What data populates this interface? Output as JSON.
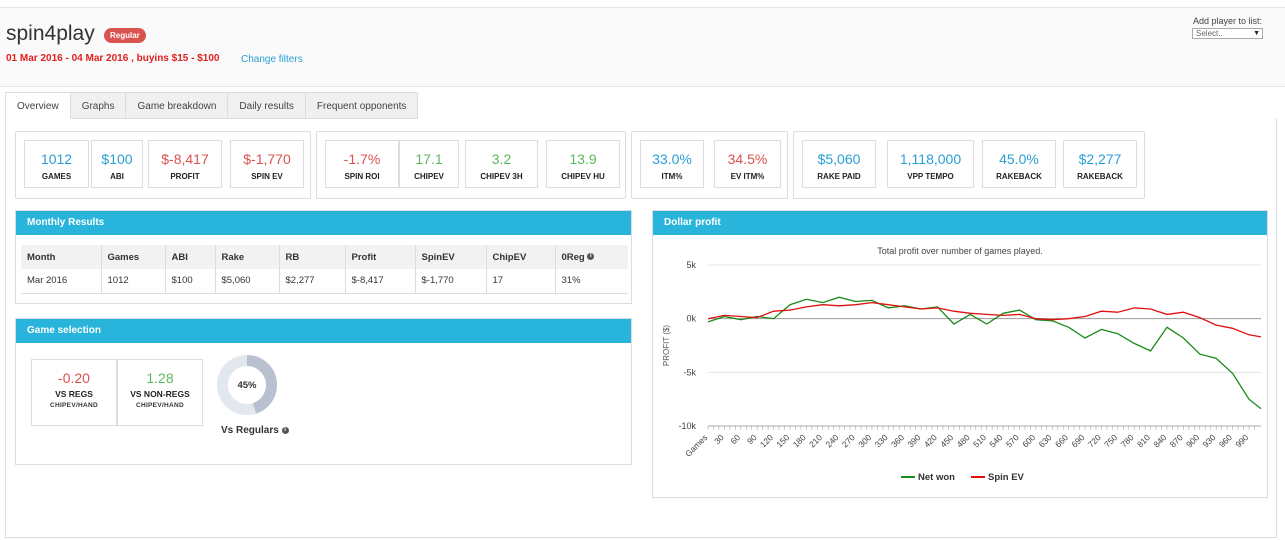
{
  "header": {
    "player_name": "spin4play",
    "badge": "Regular",
    "filter_text": "01 Mar 2016 - 04 Mar 2016 , buyins $15 - $100",
    "change_filters": "Change filters",
    "add_player_label": "Add player to list:",
    "add_player_placeholder": "Select.."
  },
  "tabs": [
    {
      "label": "Overview",
      "active": true
    },
    {
      "label": "Graphs"
    },
    {
      "label": "Game breakdown"
    },
    {
      "label": "Daily results"
    },
    {
      "label": "Frequent opponents"
    }
  ],
  "stats": {
    "games": {
      "value": "1012",
      "label": "GAMES"
    },
    "abi": {
      "value": "$100",
      "label": "ABI"
    },
    "profit": {
      "value": "$-8,417",
      "label": "PROFIT"
    },
    "spin_ev": {
      "value": "$-1,770",
      "label": "SPIN EV"
    },
    "spin_roi": {
      "value": "-1.7%",
      "label": "SPIN ROI"
    },
    "chipev": {
      "value": "17.1",
      "label": "CHIPEV"
    },
    "chipev_3h": {
      "value": "3.2",
      "label": "CHIPEV 3H"
    },
    "chipev_hu": {
      "value": "13.9",
      "label": "CHIPEV HU"
    },
    "itm": {
      "value": "33.0%",
      "label": "ITM%"
    },
    "ev_itm": {
      "value": "34.5%",
      "label": "EV ITM%"
    },
    "rake_paid": {
      "value": "$5,060",
      "label": "RAKE PAID"
    },
    "vpp_tempo": {
      "value": "1,118,000",
      "label": "VPP TEMPO"
    },
    "rakeback_pct": {
      "value": "45.0%",
      "label": "RAKEBACK"
    },
    "rakeback": {
      "value": "$2,277",
      "label": "RAKEBACK"
    }
  },
  "monthly": {
    "title": "Monthly Results",
    "columns": [
      "Month",
      "Games",
      "ABI",
      "Rake",
      "RB",
      "Profit",
      "SpinEV",
      "ChipEV",
      "0Reg"
    ],
    "rows": [
      [
        "Mar 2016",
        "1012",
        "$100",
        "$5,060",
        "$2,277",
        "$-8,417",
        "$-1,770",
        "17",
        "31%"
      ]
    ]
  },
  "game_selection": {
    "title": "Game selection",
    "vs_regs": {
      "value": "-0.20",
      "label": "VS REGS",
      "sub": "CHIPEV/HAND"
    },
    "vs_nonregs": {
      "value": "1.28",
      "label": "VS NON-REGS",
      "sub": "CHIPEV/HAND"
    },
    "donut_label": "45%",
    "donut_fraction": 0.45,
    "donut_caption": "Vs Regulars"
  },
  "colors": {
    "accent": "#29b5db",
    "net_won": "#1a8a1a",
    "spin_ev": "#e01010",
    "red_value": "#d9534f",
    "green_value": "#5cb85c",
    "blue_value": "#2a9fd6"
  },
  "dollar_profit": {
    "title": "Dollar profit",
    "subtitle": "Total profit over number of games played.",
    "chart_data": {
      "type": "line",
      "ylabel": "PROFIT ($)",
      "xlabel": "Games",
      "ylim": [
        -10000,
        5000
      ],
      "xlim": [
        0,
        1012
      ],
      "yticks": [
        5000,
        0,
        -5000,
        -10000
      ],
      "ytick_labels": [
        "5k",
        "0k",
        "-5k",
        "-10k"
      ],
      "xtick_labels": [
        "Games",
        "30",
        "60",
        "90",
        "120",
        "150",
        "180",
        "210",
        "240",
        "270",
        "300",
        "330",
        "360",
        "390",
        "420",
        "450",
        "480",
        "510",
        "540",
        "570",
        "600",
        "630",
        "660",
        "690",
        "720",
        "750",
        "780",
        "810",
        "840",
        "870",
        "900",
        "930",
        "960",
        "990"
      ],
      "xticks": [
        0,
        30,
        60,
        90,
        120,
        150,
        180,
        210,
        240,
        270,
        300,
        330,
        360,
        390,
        420,
        450,
        480,
        510,
        540,
        570,
        600,
        630,
        660,
        690,
        720,
        750,
        780,
        810,
        840,
        870,
        900,
        930,
        960,
        990
      ],
      "legend": "bottom",
      "grid": true,
      "series": [
        {
          "name": "Net won",
          "color": "#1a8a1a",
          "x": [
            0,
            30,
            60,
            90,
            120,
            150,
            180,
            210,
            240,
            270,
            300,
            330,
            360,
            390,
            420,
            450,
            480,
            510,
            540,
            570,
            600,
            630,
            660,
            690,
            720,
            750,
            780,
            810,
            840,
            870,
            900,
            930,
            960,
            990,
            1012
          ],
          "y": [
            -300,
            200,
            -100,
            200,
            0,
            1300,
            1800,
            1500,
            2000,
            1600,
            1700,
            1000,
            1200,
            900,
            1100,
            -500,
            400,
            -500,
            500,
            800,
            -100,
            -200,
            -800,
            -1800,
            -1000,
            -1400,
            -2300,
            -3000,
            -800,
            -1800,
            -3300,
            -3700,
            -5100,
            -7500,
            -8400
          ]
        },
        {
          "name": "Spin EV",
          "color": "#e01010",
          "x": [
            0,
            30,
            60,
            90,
            120,
            150,
            180,
            210,
            240,
            270,
            300,
            330,
            360,
            390,
            420,
            450,
            480,
            510,
            540,
            570,
            600,
            630,
            660,
            690,
            720,
            750,
            780,
            810,
            840,
            870,
            900,
            930,
            960,
            990,
            1012
          ],
          "y": [
            0,
            300,
            200,
            100,
            700,
            800,
            1100,
            1300,
            1200,
            1300,
            1500,
            1300,
            1100,
            900,
            1000,
            700,
            500,
            400,
            300,
            400,
            0,
            -100,
            0,
            200,
            700,
            600,
            1000,
            900,
            400,
            600,
            100,
            -600,
            -900,
            -1500,
            -1700
          ]
        }
      ]
    }
  }
}
